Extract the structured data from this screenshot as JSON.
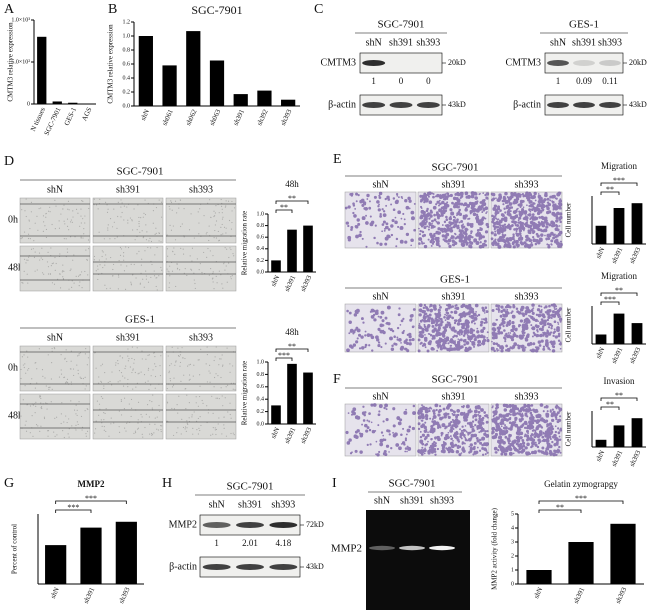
{
  "panels": {
    "A": {
      "letter": "A",
      "chart": {
        "type": "bar",
        "y_label": "CMTM3 relative expression",
        "categories": [
          "N tissues",
          "SGC-7901",
          "GES-1",
          "AGS"
        ],
        "values": [
          800,
          30,
          15,
          3
        ],
        "ylim": [
          0,
          1000
        ],
        "yticks": [
          0,
          {
            "value": 500,
            "label": "5.0×10²"
          },
          {
            "value": 1000,
            "label": "1.0×10³"
          }
        ],
        "color": "#000000"
      }
    },
    "B": {
      "letter": "B",
      "chart": {
        "type": "bar",
        "title": "SGC-7901",
        "y_label": "CMTM3 relative expression",
        "categories": [
          "shN",
          "sh061",
          "sh062",
          "sh063",
          "sh391",
          "sh392",
          "sh393"
        ],
        "values": [
          1.0,
          0.58,
          1.07,
          0.65,
          0.17,
          0.22,
          0.09
        ],
        "ylim": [
          0,
          1.2
        ],
        "yticks": [
          {
            "value": 0,
            "label": "0.0"
          },
          0.2,
          0.4,
          0.6,
          0.8,
          {
            "value": 1,
            "label": "1.0"
          },
          1.2
        ],
        "color": "#000000"
      }
    },
    "C": {
      "letter": "C",
      "blots": [
        {
          "title": "SGC-7901",
          "lanes": [
            "shN",
            "sh391",
            "sh393"
          ],
          "rows": [
            "CMTM3",
            "β-actin"
          ],
          "sizes": [
            "20kD",
            "43kD"
          ],
          "quant": [
            1,
            0,
            0
          ]
        },
        {
          "title": "GES-1",
          "lanes": [
            "shN",
            "sh391",
            "sh393"
          ],
          "rows": [
            "CMTM3",
            "β-actin"
          ],
          "sizes": [
            "20kD",
            "43kD"
          ],
          "quant": [
            1,
            0.09,
            0.11
          ]
        }
      ]
    },
    "D": {
      "letter": "D",
      "groups": [
        {
          "title": "SGC-7901",
          "lanes": [
            "shN",
            "sh391",
            "sh393"
          ],
          "rows": [
            "0h",
            "48h"
          ],
          "chart": {
            "type": "bar",
            "title": "48h",
            "y_label": "Relative migration rate",
            "categories": [
              "shN",
              "sh391",
              "sh393"
            ],
            "values": [
              0.2,
              0.73,
              0.8
            ],
            "ylim": [
              0,
              1.0
            ],
            "yticks": [
              {
                "value": 0,
                "label": "0.0"
              },
              0.2,
              0.4,
              0.6,
              0.8,
              {
                "value": 1,
                "label": "1.0"
              }
            ],
            "significance": [
              "**",
              "**"
            ],
            "color": "#000000"
          }
        },
        {
          "title": "GES-1",
          "lanes": [
            "shN",
            "sh391",
            "sh393"
          ],
          "rows": [
            "0h",
            "48h"
          ],
          "chart": {
            "type": "bar",
            "title": "48h",
            "y_label": "Relative migration rate",
            "categories": [
              "shN",
              "sh391",
              "sh393"
            ],
            "values": [
              0.3,
              0.97,
              0.83
            ],
            "ylim": [
              0,
              1.0
            ],
            "yticks": [
              {
                "value": 0,
                "label": "0.0"
              },
              0.2,
              0.4,
              0.6,
              0.8,
              {
                "value": 1,
                "label": "1.0"
              }
            ],
            "significance": [
              "***",
              "**"
            ],
            "color": "#000000"
          }
        }
      ]
    },
    "E": {
      "letter": "E",
      "groups": [
        {
          "title": "SGC-7901",
          "lanes": [
            "shN",
            "sh391",
            "sh393"
          ],
          "chart": {
            "type": "bar",
            "title": "Migration",
            "y_label": "Cell number",
            "categories": [
              "shN",
              "sh391",
              "sh393"
            ],
            "values": [
              38,
              75,
              85
            ],
            "ylim": [
              0,
              100
            ],
            "significance": [
              "**",
              "***"
            ],
            "color": "#000000"
          }
        },
        {
          "title": "GES-1",
          "lanes": [
            "shN",
            "sh391",
            "sh393"
          ],
          "chart": {
            "type": "bar",
            "title": "Migration",
            "y_label": "Cell number",
            "categories": [
              "shN",
              "sh391",
              "sh393"
            ],
            "values": [
              25,
              80,
              55
            ],
            "ylim": [
              0,
              100
            ],
            "significance": [
              "***",
              "**"
            ],
            "color": "#000000"
          }
        }
      ]
    },
    "F": {
      "letter": "F",
      "groups": [
        {
          "title": "SGC-7901",
          "lanes": [
            "shN",
            "sh391",
            "sh393"
          ],
          "chart": {
            "type": "bar",
            "title": "Invasion",
            "y_label": "Cell number",
            "categories": [
              "shN",
              "sh391",
              "sh393"
            ],
            "values": [
              20,
              60,
              80
            ],
            "ylim": [
              0,
              100
            ],
            "significance": [
              "**",
              "**"
            ],
            "color": "#000000"
          }
        }
      ]
    },
    "G": {
      "letter": "G",
      "chart": {
        "type": "bar",
        "title": "MMP2",
        "y_label": "Percent of control",
        "categories": [
          "shN",
          "sh391",
          "sh393"
        ],
        "values": [
          1.0,
          1.45,
          1.6
        ],
        "ylim": [
          0,
          1.8
        ],
        "significance": [
          "***",
          "***"
        ],
        "color": "#000000"
      }
    },
    "H": {
      "letter": "H",
      "blot": {
        "title": "SGC-7901",
        "lanes": [
          "shN",
          "sh391",
          "sh393"
        ],
        "rows": [
          "MMP2",
          "β-actin"
        ],
        "sizes": [
          "72kD",
          "43kD"
        ],
        "quant": [
          1,
          2.01,
          4.18
        ]
      }
    },
    "I": {
      "letter": "I",
      "zymogram": {
        "title": "SGC-7901",
        "lanes": [
          "shN",
          "sh391",
          "sh393"
        ],
        "row": "MMP2"
      },
      "chart": {
        "type": "bar",
        "title": "Gelatin zymograpgy",
        "y_label": "MMP2 activity (fold change)",
        "categories": [
          "shN",
          "sh391",
          "sh393"
        ],
        "values": [
          1.0,
          3.0,
          4.3
        ],
        "ylim": [
          0,
          5
        ],
        "yticks": [
          0,
          1,
          2,
          3,
          4,
          5
        ],
        "significance": [
          "**",
          "***"
        ],
        "color": "#000000"
      }
    }
  }
}
